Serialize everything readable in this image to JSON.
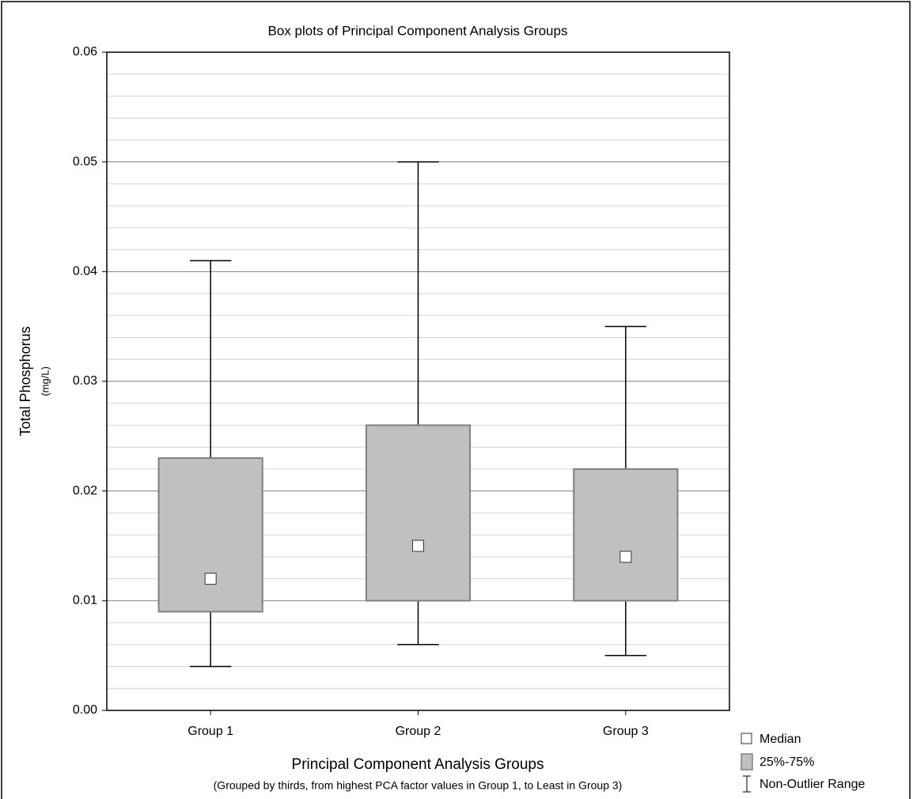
{
  "chart_data": {
    "type": "box",
    "title": "Box plots of Principal Component Analysis Groups",
    "x_label": "Principal Component Analysis Groups",
    "x_sublabel": "(Grouped by thirds, from highest PCA factor values in Group 1, to Least in Group 3)",
    "y_label": "Total Phosphorus",
    "y_sublabel": "(mg/L)",
    "categories": [
      "Group 1",
      "Group 2",
      "Group 3"
    ],
    "boxes": [
      {
        "min": 0.004,
        "q1": 0.009,
        "median": 0.012,
        "q3": 0.023,
        "max": 0.041
      },
      {
        "min": 0.006,
        "q1": 0.01,
        "median": 0.015,
        "q3": 0.026,
        "max": 0.05
      },
      {
        "min": 0.005,
        "q1": 0.01,
        "median": 0.014,
        "q3": 0.022,
        "max": 0.035
      }
    ],
    "box_color": "#c0c0c0",
    "median_color": "#ffffff",
    "ylim": [
      0,
      0.06
    ],
    "yticks": [
      {
        "value": 0,
        "label": "0.00"
      },
      0.01,
      0.02,
      0.03,
      0.04,
      0.05,
      0.06
    ],
    "minor_yticks": [
      0.002,
      0.004,
      0.006,
      0.008,
      0.012,
      0.014,
      0.016,
      0.018,
      0.022,
      0.024,
      0.026,
      0.028,
      0.032,
      0.034,
      0.036,
      0.038,
      0.042,
      0.044,
      0.046,
      0.048,
      0.052,
      0.054,
      0.056,
      0.058
    ],
    "grid": true,
    "legend": {
      "position": "bottom-right",
      "labels": [
        "Median",
        "25%-75%",
        "Non-Outlier Range"
      ]
    }
  }
}
